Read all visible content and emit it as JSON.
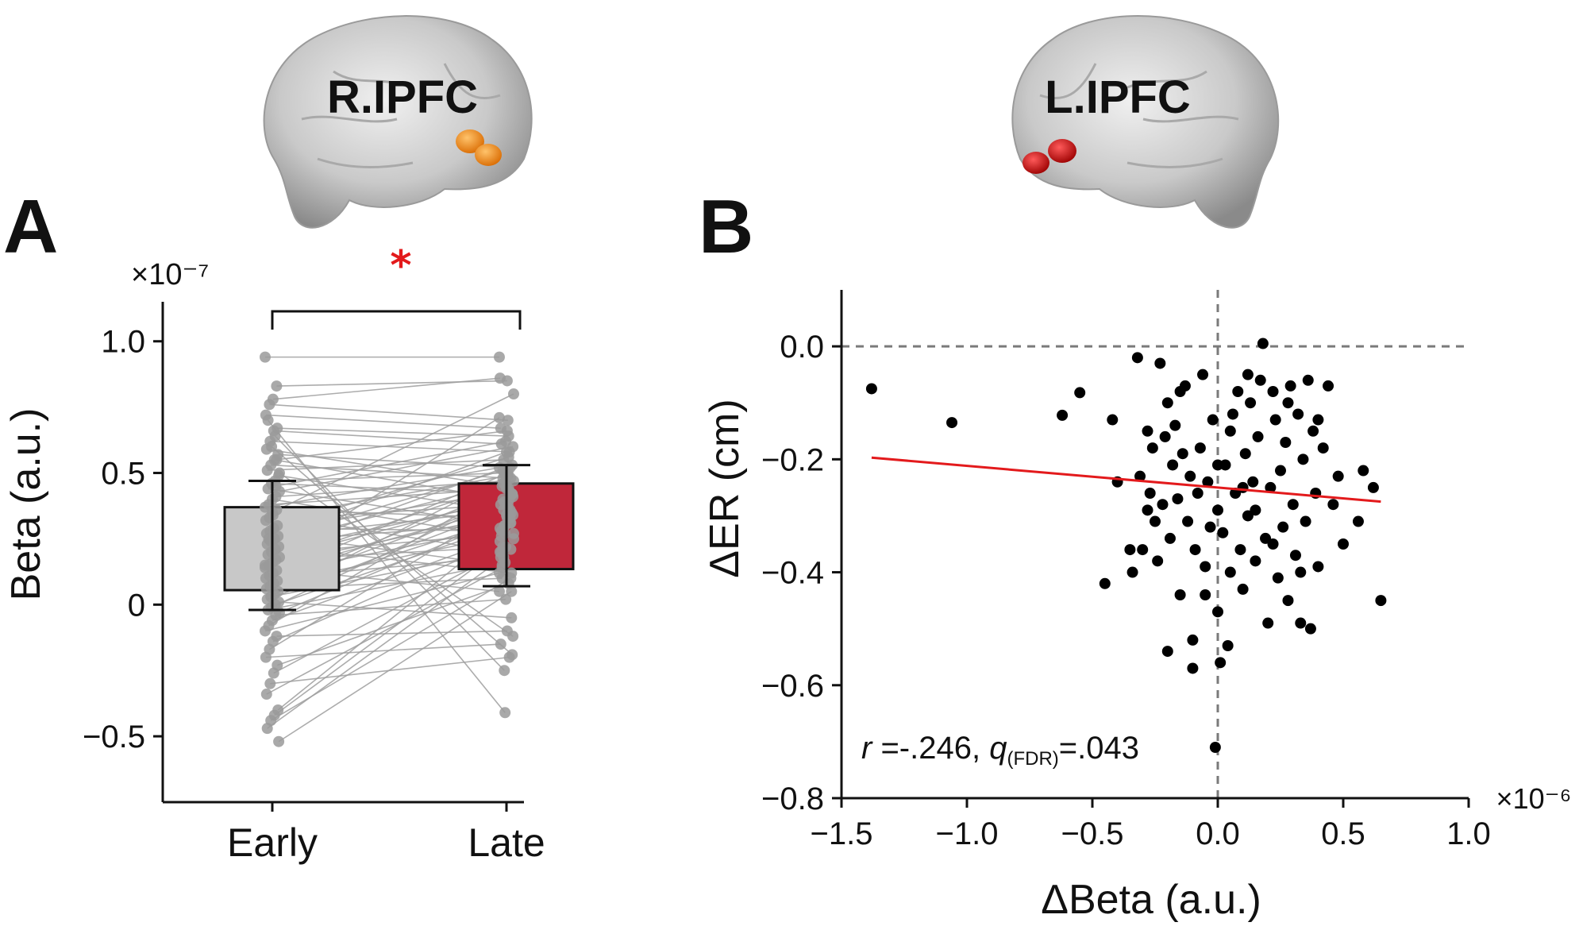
{
  "panels": {
    "a_letter": "A",
    "b_letter": "B",
    "a_brain_label": "R.IPFC",
    "b_brain_label": "L.IPFC"
  },
  "chart_data": [
    {
      "type": "bar",
      "panel": "A",
      "categories": [
        "Early",
        "Late"
      ],
      "values": [
        0.215,
        0.3
      ],
      "error_lower": [
        -0.02,
        0.07
      ],
      "error_upper": [
        0.47,
        0.53
      ],
      "box_lower": [
        0.055,
        0.135
      ],
      "box_upper": [
        0.37,
        0.46
      ],
      "bar_colors": [
        "#c8c8c8",
        "#c0273a"
      ],
      "ylabel": "Beta (a.u.)",
      "y_scale_label": "×10⁻⁷",
      "ylim": [
        -0.75,
        1.15
      ],
      "yticks": [
        -0.5,
        0,
        0.5,
        1.0
      ],
      "ytick_labels": [
        "−0.5",
        "0",
        "0.5",
        "1.0"
      ],
      "significance": "*",
      "significance_color": "#e31a1c",
      "paired_points": [
        [
          0.94,
          0.94
        ],
        [
          0.83,
          0.85
        ],
        [
          0.78,
          0.86
        ],
        [
          0.76,
          0.7
        ],
        [
          0.72,
          0.67
        ],
        [
          0.67,
          0.64
        ],
        [
          0.66,
          0.61
        ],
        [
          0.62,
          0.58
        ],
        [
          0.59,
          0.45
        ],
        [
          0.57,
          0.52
        ],
        [
          0.55,
          0.4
        ],
        [
          0.53,
          0.48
        ],
        [
          0.51,
          0.55
        ],
        [
          0.49,
          0.35
        ],
        [
          0.47,
          0.5
        ],
        [
          0.46,
          0.42
        ],
        [
          0.44,
          0.3
        ],
        [
          0.43,
          0.6
        ],
        [
          0.41,
          0.47
        ],
        [
          0.4,
          0.25
        ],
        [
          0.38,
          0.44
        ],
        [
          0.37,
          0.52
        ],
        [
          0.36,
          0.33
        ],
        [
          0.34,
          0.2
        ],
        [
          0.33,
          0.49
        ],
        [
          0.32,
          0.38
        ],
        [
          0.3,
          0.56
        ],
        [
          0.29,
          0.28
        ],
        [
          0.28,
          0.43
        ],
        [
          0.27,
          0.15
        ],
        [
          0.26,
          0.36
        ],
        [
          0.25,
          0.51
        ],
        [
          0.24,
          0.31
        ],
        [
          0.23,
          0.46
        ],
        [
          0.22,
          0.12
        ],
        [
          0.21,
          0.39
        ],
        [
          0.2,
          0.53
        ],
        [
          0.19,
          0.27
        ],
        [
          0.18,
          0.41
        ],
        [
          0.17,
          0.22
        ],
        [
          0.16,
          0.47
        ],
        [
          0.15,
          0.34
        ],
        [
          0.14,
          0.05
        ],
        [
          0.13,
          0.37
        ],
        [
          0.12,
          0.29
        ],
        [
          0.11,
          0.5
        ],
        [
          0.1,
          0.18
        ],
        [
          0.09,
          0.44
        ],
        [
          0.08,
          0.26
        ],
        [
          0.07,
          0.4
        ],
        [
          0.06,
          0.1
        ],
        [
          0.05,
          0.33
        ],
        [
          0.04,
          0.48
        ],
        [
          0.03,
          0.21
        ],
        [
          0.02,
          0.36
        ],
        [
          0.01,
          -0.05
        ],
        [
          0.0,
          0.3
        ],
        [
          -0.01,
          0.42
        ],
        [
          -0.02,
          0.16
        ],
        [
          -0.03,
          0.34
        ],
        [
          -0.04,
          0.02
        ],
        [
          -0.06,
          0.27
        ],
        [
          -0.08,
          0.45
        ],
        [
          -0.1,
          0.12
        ],
        [
          -0.12,
          -0.1
        ],
        [
          -0.14,
          0.24
        ],
        [
          -0.17,
          0.38
        ],
        [
          -0.2,
          -0.15
        ],
        [
          -0.23,
          0.08
        ],
        [
          -0.26,
          0.2
        ],
        [
          -0.3,
          -0.2
        ],
        [
          -0.34,
          0.14
        ],
        [
          -0.4,
          0.31
        ],
        [
          -0.42,
          0.22
        ],
        [
          -0.44,
          0.1
        ],
        [
          -0.47,
          0.18
        ],
        [
          -0.52,
          0.05
        ],
        [
          0.64,
          -0.25
        ],
        [
          0.6,
          -0.19
        ],
        [
          0.7,
          -0.41
        ],
        [
          0.5,
          -0.12
        ],
        [
          0.45,
          0.62
        ],
        [
          0.35,
          0.8
        ],
        [
          0.25,
          0.58
        ],
        [
          0.15,
          0.71
        ],
        [
          0.55,
          0.66
        ]
      ]
    },
    {
      "type": "scatter",
      "panel": "B",
      "xlabel": "ΔBeta (a.u.)",
      "ylabel": "ΔER (cm)",
      "x_scale_label": "×10⁻⁶",
      "xlim": [
        -1.5,
        1.0
      ],
      "ylim": [
        -0.8,
        0.1
      ],
      "xticks": [
        -1.5,
        -1.0,
        -0.5,
        0.0,
        0.5,
        1.0
      ],
      "xtick_labels": [
        "−1.5",
        "−1.0",
        "−0.5",
        "0.0",
        "0.5",
        "1.0"
      ],
      "yticks": [
        -0.8,
        -0.6,
        -0.4,
        -0.2,
        0.0
      ],
      "ytick_labels": [
        "−0.8",
        "−0.6",
        "−0.4",
        "−0.2",
        "0.0"
      ],
      "regression_line": {
        "x": [
          -1.38,
          0.65
        ],
        "y": [
          -0.197,
          -0.275
        ],
        "color": "#e31a1c"
      },
      "annotation": {
        "r_label": "r",
        "r_value": " =-.246, ",
        "q_label": "q",
        "q_sub": "(FDR)",
        "q_value": "=.043"
      },
      "points": [
        [
          -1.38,
          -0.075
        ],
        [
          -1.06,
          -0.135
        ],
        [
          -0.62,
          -0.122
        ],
        [
          -0.55,
          -0.082
        ],
        [
          -0.45,
          -0.42
        ],
        [
          -0.42,
          -0.13
        ],
        [
          -0.4,
          -0.24
        ],
        [
          -0.34,
          -0.4
        ],
        [
          -0.32,
          -0.02
        ],
        [
          -0.31,
          -0.23
        ],
        [
          -0.3,
          -0.36
        ],
        [
          -0.28,
          -0.15
        ],
        [
          -0.27,
          -0.26
        ],
        [
          -0.26,
          -0.18
        ],
        [
          -0.25,
          -0.31
        ],
        [
          -0.24,
          -0.38
        ],
        [
          -0.23,
          -0.03
        ],
        [
          -0.22,
          -0.28
        ],
        [
          -0.21,
          -0.16
        ],
        [
          -0.2,
          -0.54
        ],
        [
          -0.19,
          -0.34
        ],
        [
          -0.18,
          -0.21
        ],
        [
          -0.17,
          -0.14
        ],
        [
          -0.16,
          -0.27
        ],
        [
          -0.15,
          -0.44
        ],
        [
          -0.14,
          -0.19
        ],
        [
          -0.13,
          -0.07
        ],
        [
          -0.12,
          -0.31
        ],
        [
          -0.11,
          -0.23
        ],
        [
          -0.1,
          -0.52
        ],
        [
          -0.1,
          -0.57
        ],
        [
          -0.09,
          -0.36
        ],
        [
          -0.08,
          -0.26
        ],
        [
          -0.07,
          -0.18
        ],
        [
          -0.06,
          -0.05
        ],
        [
          -0.05,
          -0.39
        ],
        [
          -0.04,
          -0.24
        ],
        [
          -0.03,
          -0.32
        ],
        [
          -0.02,
          -0.13
        ],
        [
          -0.01,
          -0.71
        ],
        [
          0.0,
          -0.47
        ],
        [
          0.0,
          -0.29
        ],
        [
          0.01,
          -0.56
        ],
        [
          0.02,
          -0.33
        ],
        [
          0.03,
          -0.21
        ],
        [
          0.04,
          -0.53
        ],
        [
          0.05,
          -0.4
        ],
        [
          0.06,
          -0.12
        ],
        [
          0.07,
          -0.26
        ],
        [
          0.08,
          -0.08
        ],
        [
          0.09,
          -0.36
        ],
        [
          0.1,
          -0.43
        ],
        [
          0.11,
          -0.19
        ],
        [
          0.12,
          -0.3
        ],
        [
          0.13,
          -0.1
        ],
        [
          0.14,
          -0.24
        ],
        [
          0.15,
          -0.38
        ],
        [
          0.16,
          -0.16
        ],
        [
          0.17,
          -0.06
        ],
        [
          0.18,
          0.005
        ],
        [
          0.19,
          -0.34
        ],
        [
          0.2,
          -0.49
        ],
        [
          0.21,
          -0.25
        ],
        [
          0.22,
          -0.08
        ],
        [
          0.23,
          -0.13
        ],
        [
          0.24,
          -0.41
        ],
        [
          0.25,
          -0.22
        ],
        [
          0.26,
          -0.32
        ],
        [
          0.27,
          -0.17
        ],
        [
          0.28,
          -0.45
        ],
        [
          0.29,
          -0.07
        ],
        [
          0.3,
          -0.28
        ],
        [
          0.31,
          -0.37
        ],
        [
          0.32,
          -0.12
        ],
        [
          0.33,
          -0.49
        ],
        [
          0.34,
          -0.2
        ],
        [
          0.35,
          -0.31
        ],
        [
          0.36,
          -0.06
        ],
        [
          0.37,
          -0.5
        ],
        [
          0.38,
          -0.15
        ],
        [
          0.39,
          -0.26
        ],
        [
          0.4,
          -0.39
        ],
        [
          0.42,
          -0.18
        ],
        [
          0.44,
          -0.07
        ],
        [
          0.46,
          -0.28
        ],
        [
          0.48,
          -0.23
        ],
        [
          0.5,
          -0.35
        ],
        [
          0.56,
          -0.31
        ],
        [
          0.58,
          -0.22
        ],
        [
          0.62,
          -0.25
        ],
        [
          0.65,
          -0.45
        ],
        [
          -0.35,
          -0.36
        ],
        [
          -0.15,
          -0.08
        ],
        [
          0.05,
          -0.15
        ],
        [
          0.1,
          -0.25
        ],
        [
          0.22,
          -0.35
        ],
        [
          0.28,
          -0.1
        ],
        [
          -0.05,
          -0.44
        ],
        [
          0.15,
          -0.29
        ],
        [
          0.33,
          -0.4
        ],
        [
          -0.2,
          -0.1
        ],
        [
          0.4,
          -0.13
        ],
        [
          0.12,
          -0.05
        ],
        [
          -0.28,
          -0.29
        ],
        [
          0.0,
          -0.21
        ]
      ]
    }
  ]
}
